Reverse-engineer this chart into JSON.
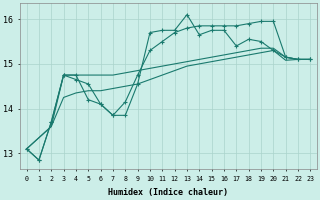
{
  "xlabel": "Humidex (Indice chaleur)",
  "bg_color": "#cceee8",
  "line_color": "#1a7a6e",
  "grid_color": "#aad4cc",
  "xlim_min": -0.5,
  "xlim_max": 23.5,
  "ylim_min": 12.65,
  "ylim_max": 16.35,
  "xticks": [
    0,
    1,
    2,
    3,
    4,
    5,
    6,
    7,
    8,
    9,
    10,
    11,
    12,
    13,
    14,
    15,
    16,
    17,
    18,
    19,
    20,
    21,
    22,
    23
  ],
  "yticks": [
    13,
    14,
    15,
    16
  ],
  "series_marker1": [
    13.1,
    12.85,
    13.7,
    14.75,
    14.75,
    14.2,
    14.1,
    13.85,
    13.85,
    14.55,
    15.7,
    15.75,
    15.75,
    16.1,
    15.65,
    15.75,
    15.75,
    15.4,
    15.55,
    15.5,
    15.3,
    15.15,
    15.1,
    15.1
  ],
  "series_marker2": [
    13.1,
    12.85,
    13.7,
    14.75,
    14.65,
    14.55,
    14.1,
    13.85,
    14.15,
    14.75,
    15.3,
    15.5,
    15.7,
    15.8,
    15.85,
    15.85,
    15.85,
    15.85,
    15.9,
    15.95,
    15.95,
    15.15,
    15.1,
    15.1
  ],
  "series_trend1": [
    13.1,
    13.35,
    13.6,
    14.75,
    14.75,
    14.75,
    14.75,
    14.75,
    14.8,
    14.85,
    14.9,
    14.95,
    15.0,
    15.05,
    15.1,
    15.15,
    15.2,
    15.25,
    15.3,
    15.35,
    15.35,
    15.15,
    15.1,
    15.1
  ],
  "series_trend2": [
    13.1,
    13.35,
    13.6,
    14.25,
    14.35,
    14.4,
    14.4,
    14.45,
    14.5,
    14.55,
    14.65,
    14.75,
    14.85,
    14.95,
    15.0,
    15.05,
    15.1,
    15.15,
    15.2,
    15.25,
    15.3,
    15.08,
    15.1,
    15.1
  ]
}
